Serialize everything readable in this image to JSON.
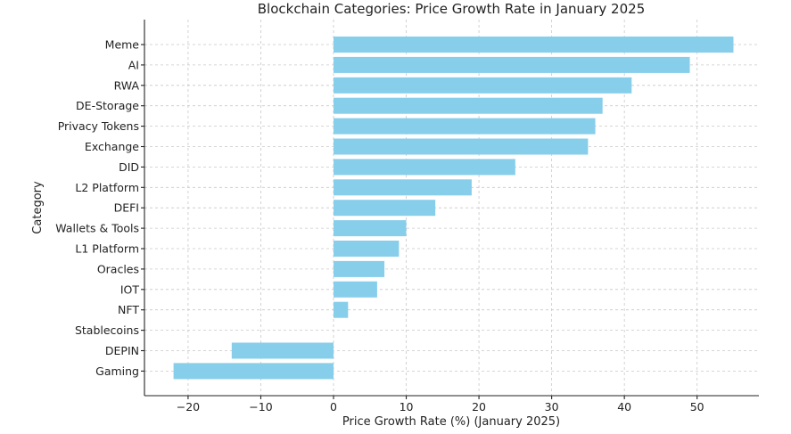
{
  "chart_data": {
    "type": "bar",
    "orientation": "horizontal",
    "title": "Blockchain Categories: Price Growth Rate in January 2025",
    "xlabel": "Price Growth Rate (%) (January 2025)",
    "ylabel": "Category",
    "xlim": [
      -26,
      58.5
    ],
    "xticks": [
      -20,
      -10,
      0,
      10,
      20,
      30,
      40,
      50
    ],
    "xtick_labels": [
      "−20",
      "−10",
      "0",
      "10",
      "20",
      "30",
      "40",
      "50"
    ],
    "grid": true,
    "bar_color": "#87ceeb",
    "categories": [
      "Meme",
      "AI",
      "RWA",
      "DE-Storage",
      "Privacy Tokens",
      "Exchange",
      "DID",
      "L2 Platform",
      "DEFI",
      "Wallets & Tools",
      "L1 Platform",
      "Oracles",
      "IOT",
      "NFT",
      "Stablecoins",
      "DEPIN",
      "Gaming"
    ],
    "values": [
      55,
      49,
      41,
      37,
      36,
      35,
      25,
      19,
      14,
      10,
      9,
      7,
      6,
      2,
      0,
      -14,
      -22
    ]
  }
}
